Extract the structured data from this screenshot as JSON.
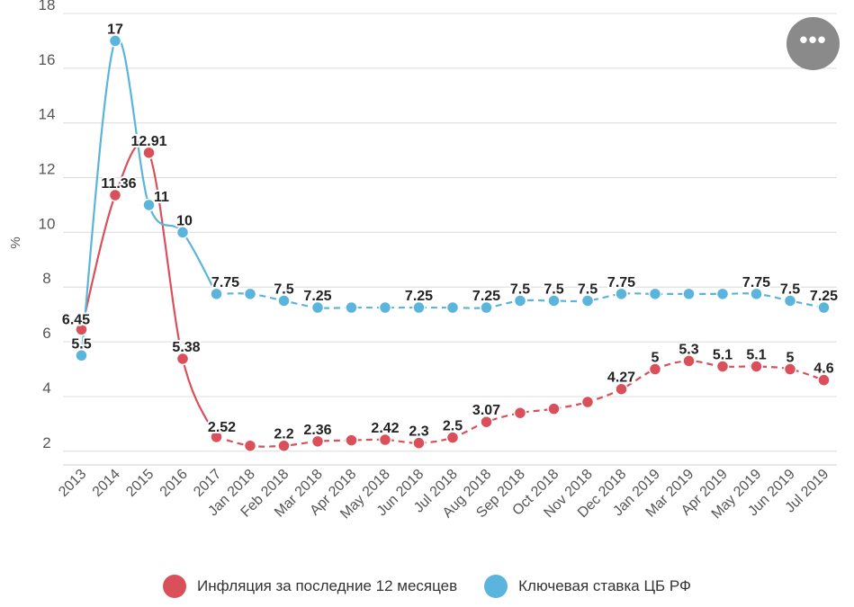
{
  "menu": {
    "more_label": "•••"
  },
  "chart_data": {
    "type": "line",
    "xlabel": "",
    "ylabel": "%",
    "ylim": [
      1.5,
      18
    ],
    "yticks": [
      2,
      4,
      6,
      8,
      10,
      12,
      14,
      16,
      18
    ],
    "grid": true,
    "legend_position": "bottom",
    "categories": [
      "2013",
      "2014",
      "2015",
      "2016",
      "2017",
      "Jan 2018",
      "Feb 2018",
      "Mar 2018",
      "Apr 2018",
      "May 2018",
      "Jun 2018",
      "Jul 2018",
      "Aug 2018",
      "Sep 2018",
      "Oct 2018",
      "Nov 2018",
      "Dec 2018",
      "Jan 2019",
      "Mar 2019",
      "Apr 2019",
      "May 2019",
      "Jun 2019",
      "Jul 2019"
    ],
    "series": [
      {
        "name": "Инфляция за последние 12 месяцев",
        "color": "#d9505a",
        "values": [
          6.45,
          11.36,
          12.91,
          5.38,
          2.52,
          2.2,
          2.2,
          2.36,
          2.4,
          2.42,
          2.3,
          2.5,
          3.07,
          3.4,
          3.55,
          3.8,
          4.27,
          5,
          5.3,
          5.1,
          5.1,
          5,
          4.6
        ],
        "labels": [
          "6.45",
          "11.36",
          "12.91",
          "5.38",
          "2.52",
          "",
          "2.2",
          "2.36",
          "",
          "2.42",
          "2.3",
          "2.5",
          "3.07",
          "",
          "",
          "",
          "4.27",
          "5",
          "5.3",
          "5.1",
          "5.1",
          "5",
          "4.6"
        ]
      },
      {
        "name": "Ключевая ставка ЦБ РФ",
        "color": "#5ab4dc",
        "values": [
          5.5,
          17,
          11,
          10,
          7.75,
          7.75,
          7.5,
          7.25,
          7.25,
          7.25,
          7.25,
          7.25,
          7.25,
          7.5,
          7.5,
          7.5,
          7.75,
          7.75,
          7.75,
          7.75,
          7.75,
          7.5,
          7.25
        ],
        "labels": [
          "5.5",
          "17",
          "11",
          "10",
          "7.75",
          "",
          "7.5",
          "7.25",
          "",
          "",
          "7.25",
          "",
          "7.25",
          "7.5",
          "7.5",
          "7.5",
          "7.75",
          "",
          "",
          "",
          "7.75",
          "7.5",
          "7.25"
        ]
      }
    ]
  }
}
